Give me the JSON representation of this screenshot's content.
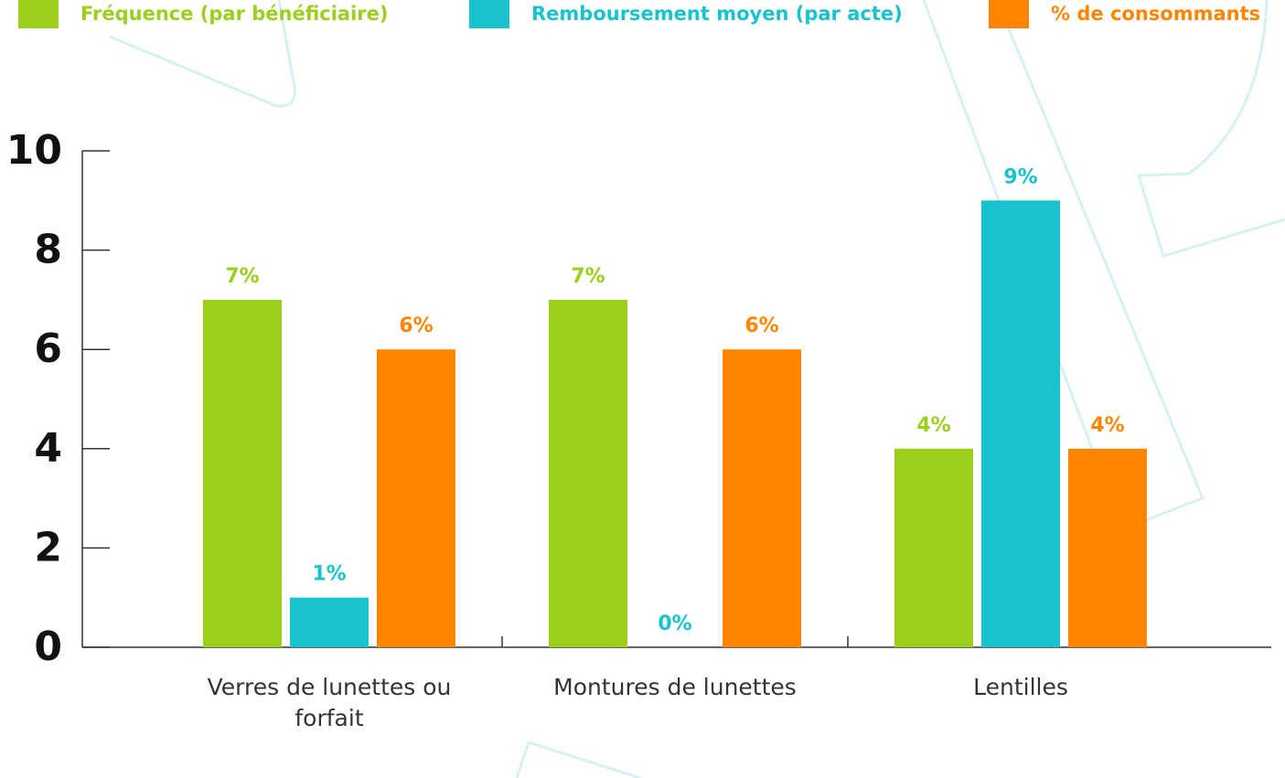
{
  "chart_data": {
    "type": "bar",
    "categories": [
      "Verres de lunettes ou forfait",
      "Montures de lunettes",
      "Lentilles"
    ],
    "series": [
      {
        "name": "Fréquence (par bénéficiaire)",
        "color": "#9bcf1b",
        "values": [
          7,
          7,
          4
        ],
        "value_labels": [
          "7%",
          "7%",
          "4%"
        ]
      },
      {
        "name": "Remboursement moyen (par acte)",
        "color": "#19c3cc",
        "values": [
          1,
          0,
          9
        ],
        "value_labels": [
          "1%",
          "0%",
          "9%"
        ]
      },
      {
        "name": "% de consommants",
        "color": "#ff8500",
        "values": [
          6,
          6,
          4
        ],
        "value_labels": [
          "6%",
          "6%",
          "4%"
        ]
      }
    ],
    "ylim": [
      0,
      10
    ],
    "yticks": [
      0,
      2,
      4,
      6,
      8,
      10
    ],
    "grid": false,
    "legend": "top"
  }
}
